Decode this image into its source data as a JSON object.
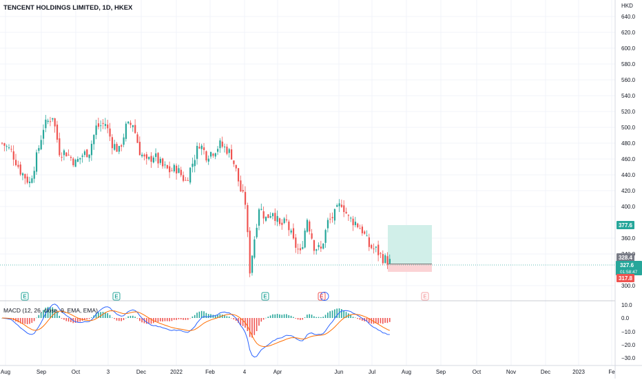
{
  "header": {
    "symbol_title": "TENCENT HOLDINGS LIMITED, 1D, HKEX"
  },
  "price_axis": {
    "currency": "HKD",
    "ticks": [
      "640.0",
      "620.0",
      "600.0",
      "580.0",
      "560.0",
      "540.0",
      "520.0",
      "500.0",
      "480.0",
      "460.0",
      "440.0",
      "420.0",
      "400.0",
      "360.0",
      "340.0",
      "300.0"
    ]
  },
  "macd_axis": {
    "ticks": [
      "10.0",
      "0.0",
      "−10.0",
      "−20.0",
      "−30.0"
    ]
  },
  "time_axis": {
    "labels": [
      "Aug",
      "Sep",
      "Oct",
      "3",
      "Dec",
      "2022",
      "Feb",
      "4",
      "Apr",
      "Jun",
      "Jul",
      "Aug",
      "Sep",
      "Oct",
      "Nov",
      "Dec",
      "2023",
      "Fe"
    ]
  },
  "indicator": {
    "label": "MACD (12, 26, close, 9, EMA, EMA)"
  },
  "tags": {
    "target": "377.6",
    "stop": "317.8",
    "last_price": "328.4",
    "current_price": "327.6",
    "countdown": "01:58:47"
  },
  "earnings_marker": {
    "label": "E"
  },
  "colors": {
    "up": "#26a69a",
    "down": "#ef5350",
    "macd_line": "#2962ff",
    "signal_line": "#ff6d00",
    "target_zone": "#d1efe9",
    "stop_zone": "#fbd3d5"
  },
  "chart_data": {
    "type": "candlestick",
    "symbol": "TENCENT HOLDINGS LIMITED",
    "interval": "1D",
    "exchange": "HKEX",
    "currency": "HKD",
    "y_range": [
      290,
      650
    ],
    "approx_close_path": [
      {
        "x": "Aug",
        "y": 470
      },
      {
        "x": "Sep",
        "y": 500
      },
      {
        "x": "Oct",
        "y": 455
      },
      {
        "x": "3",
        "y": 505
      },
      {
        "x": "Dec",
        "y": 455
      },
      {
        "x": "2022",
        "y": 470
      },
      {
        "x": "Feb",
        "y": 480
      },
      {
        "x": "4",
        "y": 330
      },
      {
        "x": "Apr",
        "y": 370
      },
      {
        "x": "Jun",
        "y": 380
      },
      {
        "x": "Jul",
        "y": 340
      },
      {
        "x": "Jul",
        "y": 328
      }
    ],
    "position": {
      "target": 377.6,
      "entry": 328.4,
      "stop": 317.8
    },
    "macd": {
      "range": [
        -33,
        11
      ]
    }
  }
}
